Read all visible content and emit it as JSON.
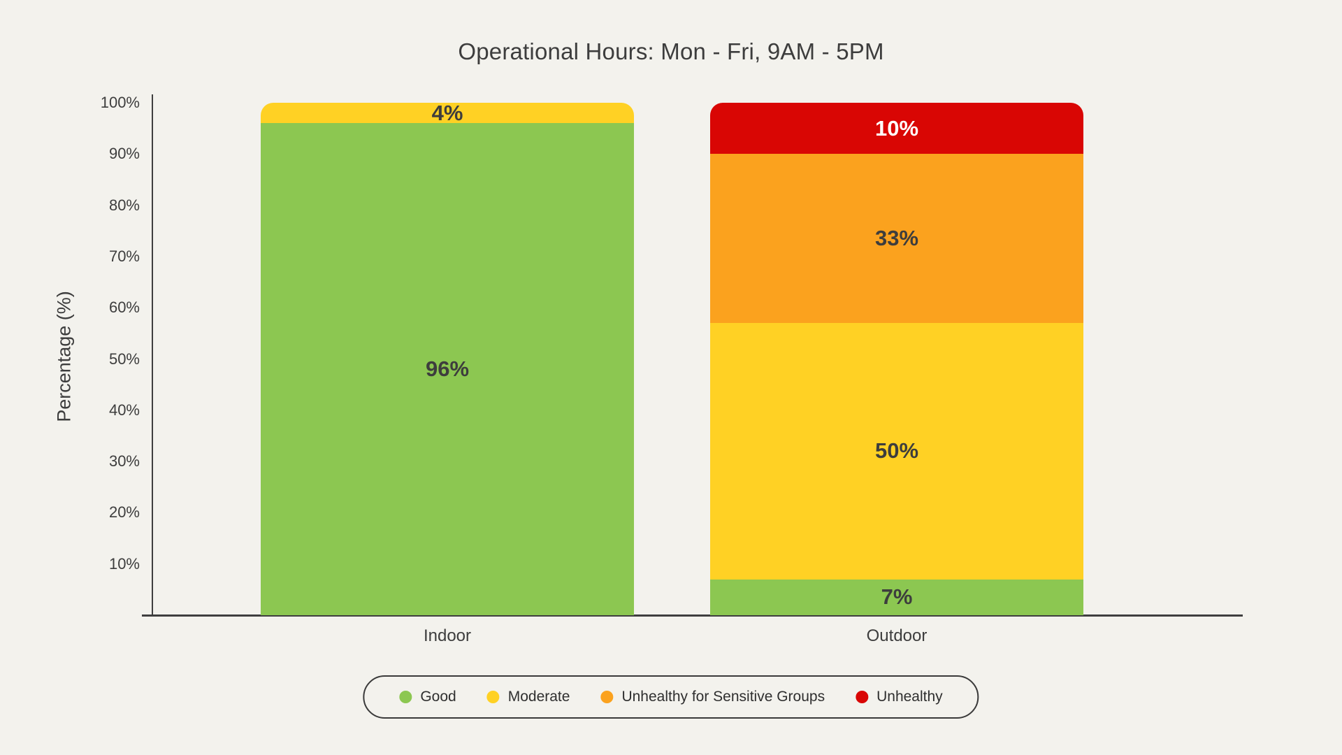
{
  "title": "Operational Hours: Mon - Fri, 9AM - 5PM",
  "colors": {
    "background": "#F3F2ED",
    "axis": "#3F3F3F",
    "text": "#3D3D3D",
    "good": "#8CC751",
    "moderate": "#FFD124",
    "unhealthy_sensitive": "#FBA21E",
    "unhealthy": "#D90604"
  },
  "chart_data": {
    "type": "bar",
    "stacked": true,
    "title": "Operational Hours: Mon - Fri, 9AM - 5PM",
    "xlabel": "",
    "ylabel": "Percentage (%)",
    "ylim": [
      0,
      100
    ],
    "yticks": [
      "100%",
      "90%",
      "80%",
      "70%",
      "60%",
      "50%",
      "40%",
      "30%",
      "20%",
      "10%"
    ],
    "grid": false,
    "legend_position": "bottom",
    "value_suffix": "%",
    "categories": [
      "Indoor",
      "Outdoor"
    ],
    "series": [
      {
        "name": "Good",
        "color": "#8CC751",
        "label_color": "#3D3D3D",
        "values": [
          96,
          7
        ]
      },
      {
        "name": "Moderate",
        "color": "#FFD124",
        "label_color": "#3D3D3D",
        "values": [
          4,
          50
        ]
      },
      {
        "name": "Unhealthy for Sensitive Groups",
        "color": "#FBA21E",
        "label_color": "#3D3D3D",
        "values": [
          0,
          33
        ]
      },
      {
        "name": "Unhealthy",
        "color": "#D90604",
        "label_color": "#FFFFFF",
        "values": [
          0,
          10
        ]
      }
    ]
  },
  "legend": {
    "items": [
      {
        "label": "Good",
        "color": "#8CC751"
      },
      {
        "label": "Moderate",
        "color": "#FFD124"
      },
      {
        "label": "Unhealthy for Sensitive Groups",
        "color": "#FBA21E"
      },
      {
        "label": "Unhealthy",
        "color": "#D90604"
      }
    ]
  }
}
